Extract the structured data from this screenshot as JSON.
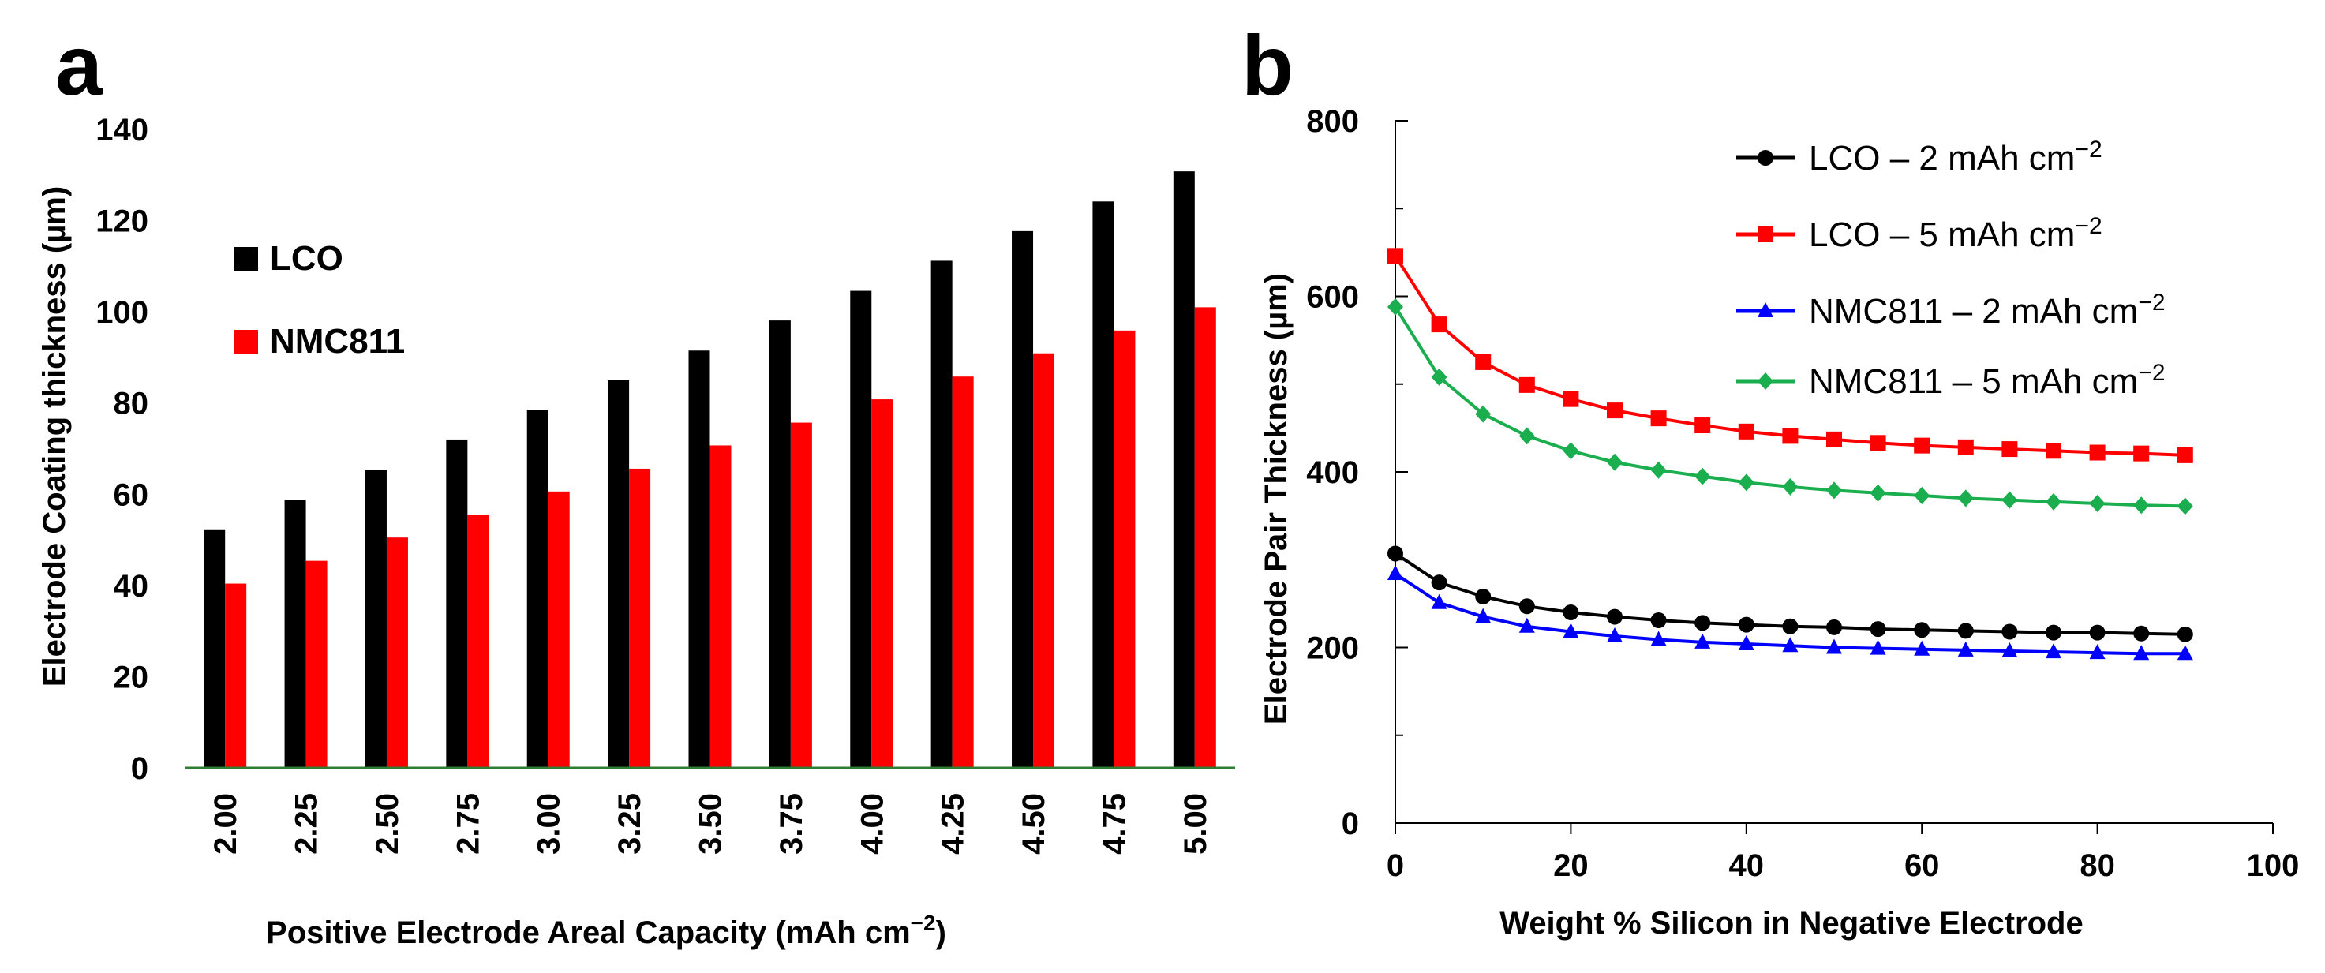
{
  "colors": {
    "lco": "#000000",
    "nmc811": "#ff0000",
    "lco_2": "#000000",
    "lco_5": "#ff0000",
    "nmc_2": "#0000ff",
    "nmc_5": "#1aae4f",
    "baseline": "#2e7d32"
  },
  "chart_data": [
    {
      "panel_label": "a",
      "type": "bar",
      "title": "",
      "xlabel_parts": [
        "Positive Electrode Areal Capacity (mAh cm",
        "−2",
        ")"
      ],
      "ylabel": "Electrode Coating thickness (µm)",
      "ylim": [
        0,
        140
      ],
      "yticks": [
        "0",
        "20",
        "40",
        "60",
        "80",
        "100",
        "120",
        "140"
      ],
      "categories": [
        "2.00",
        "2.25",
        "2.50",
        "2.75",
        "3.00",
        "3.25",
        "3.50",
        "3.75",
        "4.00",
        "4.25",
        "4.50",
        "4.75",
        "5.00"
      ],
      "legend_position": "upper-left",
      "grid": false,
      "series": [
        {
          "name": "LCO",
          "color_key": "lco",
          "values": [
            52.3,
            58.8,
            65.4,
            72.0,
            78.5,
            85.0,
            91.5,
            98.1,
            104.6,
            111.2,
            117.7,
            124.2,
            130.8
          ]
        },
        {
          "name": "NMC811",
          "color_key": "nmc811",
          "values": [
            40.4,
            45.4,
            50.5,
            55.5,
            60.6,
            65.6,
            70.7,
            75.7,
            80.8,
            85.8,
            90.9,
            95.9,
            101.0
          ]
        }
      ]
    },
    {
      "panel_label": "b",
      "type": "line",
      "title": "",
      "xlabel": "Weight % Silicon in Negative Electrode",
      "ylabel": "Electrode Pair Thickness (µm)",
      "xlim": [
        0,
        100
      ],
      "ylim": [
        0,
        800
      ],
      "xticks": [
        "0",
        "20",
        "40",
        "60",
        "80",
        "100"
      ],
      "yticks": [
        "0",
        "200",
        "400",
        "600",
        "800"
      ],
      "legend_position": "top-right",
      "grid": false,
      "x": [
        0,
        5,
        10,
        15,
        20,
        25,
        30,
        35,
        40,
        45,
        50,
        55,
        60,
        65,
        70,
        75,
        80,
        85,
        90
      ],
      "series": [
        {
          "name": "LCO – 2 mAh cm",
          "sup": "−2",
          "marker": "circle",
          "color_key": "lco_2",
          "values": [
            307,
            274,
            258,
            247,
            240,
            235,
            231,
            228,
            226,
            224,
            223,
            221,
            220,
            219,
            218,
            217,
            217,
            216,
            215
          ]
        },
        {
          "name": "LCO – 5 mAh cm",
          "sup": "−2",
          "marker": "square",
          "color_key": "lco_5",
          "values": [
            646,
            568,
            525,
            499,
            483,
            470,
            461,
            453,
            446,
            441,
            437,
            433,
            430,
            428,
            426,
            424,
            422,
            421,
            419
          ]
        },
        {
          "name": "NMC811 – 2 mAh cm",
          "sup": "−2",
          "marker": "triangle",
          "color_key": "nmc_2",
          "values": [
            284,
            251,
            235,
            224,
            218,
            213,
            209,
            206,
            204,
            202,
            200,
            199,
            198,
            197,
            196,
            195,
            194,
            193,
            193
          ]
        },
        {
          "name": "NMC811 – 5 mAh cm",
          "sup": "−2",
          "marker": "diamond",
          "color_key": "nmc_5",
          "values": [
            588,
            508,
            466,
            441,
            424,
            411,
            402,
            395,
            388,
            383,
            379,
            376,
            373,
            370,
            368,
            366,
            364,
            362,
            361
          ]
        }
      ]
    }
  ]
}
